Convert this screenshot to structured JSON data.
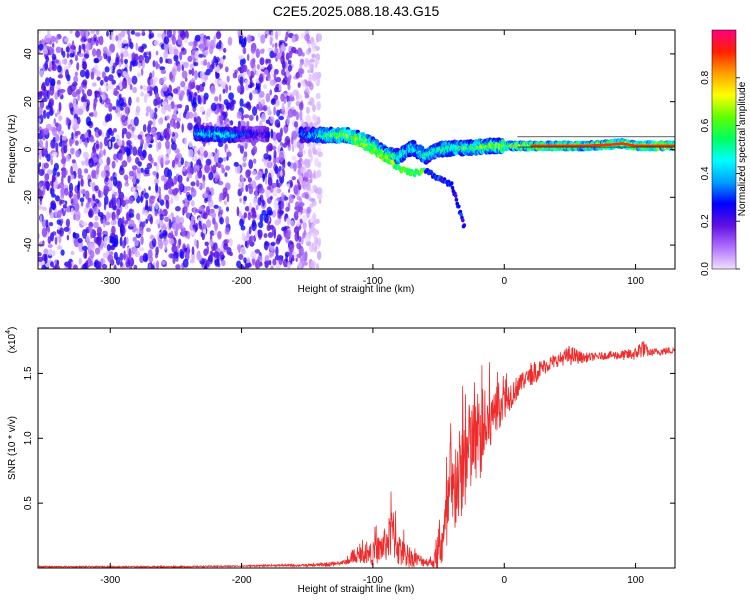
{
  "title": "C2E5.2025.088.18.43.G15",
  "chart_data": [
    {
      "type": "heatmap",
      "title": "",
      "xlabel": "Height of straight line (km)",
      "ylabel": "Frequency (Hz)",
      "xlim": [
        -355,
        130
      ],
      "ylim": [
        -50,
        50
      ],
      "x_ticks": [
        -300,
        -200,
        -100,
        0,
        100
      ],
      "y_ticks": [
        -40,
        -20,
        0,
        20,
        40
      ],
      "colorbar": {
        "label": "Normalized spectral amplitude",
        "range": [
          0.0,
          1.0
        ],
        "ticks": [
          "0.0",
          "0.2",
          "0.4",
          "0.6",
          "0.8"
        ],
        "colors": [
          "#f0e0ff",
          "#b070ff",
          "#6010e0",
          "#0000ff",
          "#00a0ff",
          "#00ffff",
          "#00ff60",
          "#60ff00",
          "#ffff00",
          "#ffa000",
          "#ff2000",
          "#ff0080"
        ]
      },
      "noise_region_x": [
        -355,
        -140
      ],
      "main_track": [
        {
          "x": -235,
          "y": 7,
          "a": 0.45
        },
        {
          "x": -225,
          "y": 6.5,
          "a": 0.5
        },
        {
          "x": -210,
          "y": 6,
          "a": 0.55
        },
        {
          "x": -200,
          "y": 6.5,
          "a": 0.35
        },
        {
          "x": -185,
          "y": 6.5,
          "a": 0.25
        },
        {
          "x": -150,
          "y": 6,
          "a": 0.45
        },
        {
          "x": -140,
          "y": 6,
          "a": 0.55
        },
        {
          "x": -130,
          "y": 6,
          "a": 0.7
        },
        {
          "x": -120,
          "y": 6,
          "a": 0.8
        },
        {
          "x": -110,
          "y": 4.5,
          "a": 0.75
        },
        {
          "x": -100,
          "y": 2,
          "a": 0.7
        },
        {
          "x": -90,
          "y": -2,
          "a": 0.65
        },
        {
          "x": -80,
          "y": -3,
          "a": 0.6
        },
        {
          "x": -70,
          "y": 1,
          "a": 0.55
        },
        {
          "x": -60,
          "y": -3,
          "a": 0.6
        },
        {
          "x": -50,
          "y": 0,
          "a": 0.6
        },
        {
          "x": -40,
          "y": 0.5,
          "a": 0.6
        },
        {
          "x": -30,
          "y": 0.5,
          "a": 0.65
        },
        {
          "x": -20,
          "y": 1,
          "a": 0.7
        },
        {
          "x": -10,
          "y": 1.5,
          "a": 0.75
        },
        {
          "x": 0,
          "y": 1.5,
          "a": 0.8
        },
        {
          "x": 20,
          "y": 1.5,
          "a": 0.85
        },
        {
          "x": 40,
          "y": 1.5,
          "a": 0.85
        },
        {
          "x": 60,
          "y": 1.5,
          "a": 0.85
        },
        {
          "x": 80,
          "y": 2,
          "a": 0.85
        },
        {
          "x": 90,
          "y": 2.5,
          "a": 0.9
        },
        {
          "x": 100,
          "y": 1.5,
          "a": 0.85
        },
        {
          "x": 130,
          "y": 1.5,
          "a": 0.9
        }
      ],
      "secondary_branch": [
        {
          "x": -115,
          "y": 4
        },
        {
          "x": -95,
          "y": -2
        },
        {
          "x": -80,
          "y": -8
        },
        {
          "x": -70,
          "y": -10
        },
        {
          "x": -60,
          "y": -9
        },
        {
          "x": -40,
          "y": -15
        },
        {
          "x": -30,
          "y": -33
        }
      ],
      "grid": false
    },
    {
      "type": "line",
      "title": "",
      "xlabel": "Height of straight line (km)",
      "ylabel": "SNR (10 * v/v)",
      "y_scale_label": "(x10",
      "y_scale_exp": "4",
      "y_scale_suffix": ")",
      "xlim": [
        -355,
        130
      ],
      "ylim": [
        0,
        1.85
      ],
      "x_ticks": [
        -300,
        -200,
        -100,
        0,
        100
      ],
      "y_ticks": [
        0.5,
        1.0,
        1.5
      ],
      "y_tick_labels": [
        "0.5",
        "1.0",
        "1.5"
      ],
      "series": [
        {
          "color": "#ee2c2c",
          "x": [
            -355,
            -300,
            -250,
            -200,
            -170,
            -150,
            -130,
            -120,
            -110,
            -100,
            -90,
            -85,
            -80,
            -75,
            -70,
            -60,
            -55,
            -50,
            -45,
            -40,
            -35,
            -30,
            -25,
            -20,
            -15,
            -10,
            -5,
            0,
            5,
            10,
            15,
            20,
            25,
            30,
            35,
            40,
            45,
            50,
            55,
            60,
            70,
            80,
            90,
            100,
            105,
            110,
            120,
            130
          ],
          "y": [
            0.01,
            0.01,
            0.01,
            0.015,
            0.02,
            0.02,
            0.03,
            0.05,
            0.1,
            0.12,
            0.2,
            0.3,
            0.15,
            0.1,
            0.08,
            0.05,
            0.04,
            0.1,
            0.3,
            0.55,
            0.7,
            0.85,
            0.95,
            1.0,
            1.05,
            1.15,
            1.25,
            1.3,
            1.35,
            1.4,
            1.45,
            1.5,
            1.52,
            1.55,
            1.58,
            1.6,
            1.62,
            1.64,
            1.63,
            1.62,
            1.63,
            1.64,
            1.64,
            1.65,
            1.7,
            1.66,
            1.67,
            1.68
          ],
          "noise_amp": [
            0.005,
            0.005,
            0.005,
            0.005,
            0.008,
            0.01,
            0.02,
            0.05,
            0.12,
            0.2,
            0.3,
            0.45,
            0.3,
            0.2,
            0.15,
            0.08,
            0.06,
            0.3,
            0.6,
            0.75,
            0.85,
            0.85,
            0.8,
            0.75,
            0.6,
            0.5,
            0.4,
            0.3,
            0.25,
            0.2,
            0.15,
            0.1,
            0.08,
            0.06,
            0.06,
            0.05,
            0.06,
            0.08,
            0.06,
            0.04,
            0.03,
            0.03,
            0.04,
            0.05,
            0.08,
            0.03,
            0.03,
            0.03
          ]
        }
      ],
      "grid": false
    }
  ]
}
